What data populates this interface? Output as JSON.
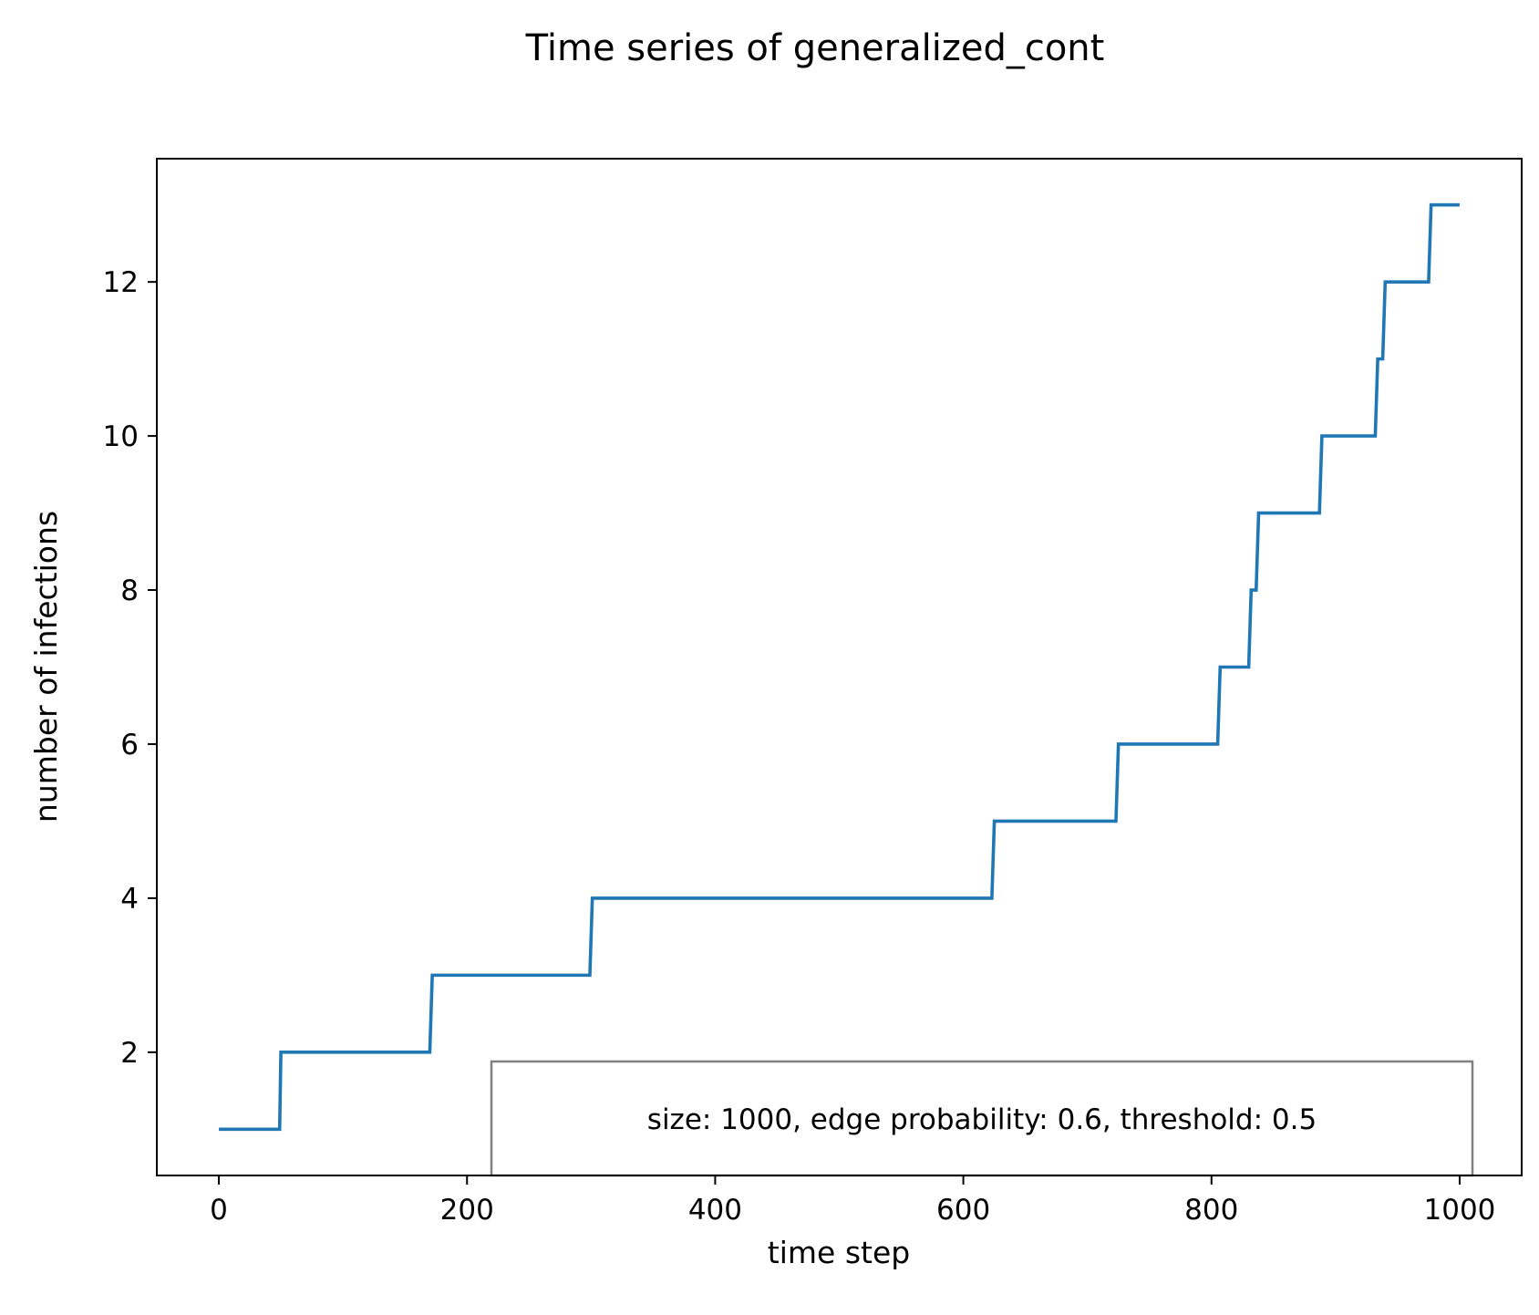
{
  "chart_data": {
    "type": "line",
    "title": "Time series of generalized_cont",
    "xlabel": "time step",
    "ylabel": "number of infections",
    "xlim": [
      -50,
      1050
    ],
    "ylim": [
      0.4,
      13.6
    ],
    "xticks": [
      0,
      200,
      400,
      600,
      800,
      1000
    ],
    "yticks": [
      2,
      4,
      6,
      8,
      10,
      12
    ],
    "grid": false,
    "step": true,
    "series": [
      {
        "color": "#1f77b4",
        "x": [
          0,
          49,
          50,
          170,
          172,
          299,
          301,
          623,
          625,
          723,
          725,
          805,
          807,
          830,
          832,
          836,
          838,
          887,
          889,
          932,
          934,
          938,
          940,
          975,
          977,
          1000
        ],
        "y": [
          1,
          1,
          2,
          2,
          3,
          3,
          4,
          4,
          5,
          5,
          6,
          6,
          7,
          7,
          8,
          8,
          9,
          9,
          10,
          10,
          11,
          11,
          12,
          12,
          13,
          13
        ]
      }
    ],
    "annotation": {
      "text": "size: 1000, edge probability: 0.6, threshold: 0.5",
      "border_color": "#808080"
    }
  }
}
